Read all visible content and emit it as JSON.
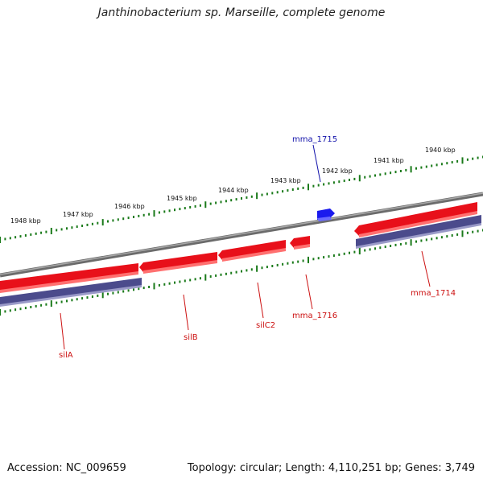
{
  "title": "Janthinobacterium sp. Marseille, complete genome",
  "footer": {
    "accession": "Accession: NC_009659",
    "topology": "Topology: circular; Length: 4,110,251 bp; Genes: 3,749"
  },
  "ticks": [
    {
      "label": "1940 kbp"
    },
    {
      "label": "1941 kbp"
    },
    {
      "label": "1942 kbp"
    },
    {
      "label": "1943 kbp"
    },
    {
      "label": "1944 kbp"
    },
    {
      "label": "1945 kbp"
    },
    {
      "label": "1946 kbp"
    },
    {
      "label": "1947 kbp"
    },
    {
      "label": "1948 kbp"
    }
  ],
  "genes": [
    {
      "label": "silA",
      "strand": "reverse",
      "color": "#e8101a"
    },
    {
      "label": "silB",
      "strand": "reverse",
      "color": "#e8101a"
    },
    {
      "label": "silC2",
      "strand": "reverse",
      "color": "#e8101a"
    },
    {
      "label": "mma_1716",
      "strand": "reverse",
      "color": "#e8101a"
    },
    {
      "label": "mma_1714",
      "strand": "reverse",
      "color": "#e8101a"
    },
    {
      "label": "mma_1715",
      "strand": "forward",
      "color": "#1a1aee"
    }
  ],
  "colors": {
    "backbone": "#808080",
    "cds_red": "#e8101a",
    "cds_blue": "#1a1aee",
    "ortholog_bar": "#4a4a8a",
    "tick_green": "#1a7a1a"
  }
}
